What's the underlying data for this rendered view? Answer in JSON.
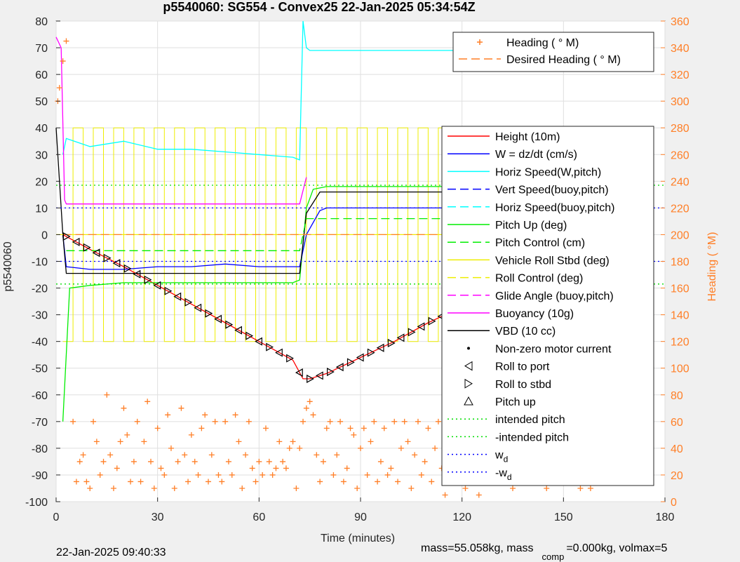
{
  "chart_data": {
    "type": "line",
    "title": "p5540060: SG554 - Convex25 22-Jan-2025 05:34:54Z",
    "xlabel": "Time (minutes)",
    "ylabel_left": "p5540060",
    "ylabel_right": "Heading (  °M)",
    "xlim": [
      0,
      180
    ],
    "ylim_left": [
      -100,
      80
    ],
    "ylim_right": [
      0,
      360
    ],
    "xticks": [
      0,
      30,
      60,
      90,
      120,
      150,
      180
    ],
    "yticks_left": [
      -100,
      -90,
      -80,
      -70,
      -60,
      -50,
      -40,
      -30,
      -20,
      -10,
      0,
      10,
      20,
      30,
      40,
      50,
      60,
      70,
      80
    ],
    "yticks_right": [
      0,
      20,
      40,
      60,
      80,
      100,
      120,
      140,
      160,
      180,
      200,
      220,
      240,
      260,
      280,
      300,
      320,
      340,
      360
    ],
    "grid": true,
    "footer_left": "22-Jan-2025 09:40:33",
    "footer_right": {
      "t1": "mass=55.058kg, mass",
      "sub": "comp",
      "t2": "=0.000kg, volmax=5"
    },
    "legend_top": {
      "placement": "top-right",
      "entries": [
        {
          "label": "Heading (   ° M)",
          "color": "#ff7f27",
          "style": "plus"
        },
        {
          "label": "Desired Heading (    ° M)",
          "color": "#ff7f27",
          "style": "dash"
        }
      ]
    },
    "legend_main": {
      "placement": "right",
      "entries": [
        {
          "label": "Height (10m)",
          "color": "#ff0000",
          "style": "solid"
        },
        {
          "label": "W = dz/dt (cm/s)",
          "color": "#0000ff",
          "style": "solid"
        },
        {
          "label": "Horiz Speed(W,pitch)",
          "color": "#00ffff",
          "style": "solid"
        },
        {
          "label": "Vert Speed(buoy,pitch)",
          "color": "#0000ff",
          "style": "dash"
        },
        {
          "label": "Horiz Speed(buoy,pitch)",
          "color": "#00ffff",
          "style": "dash"
        },
        {
          "label": "Pitch Up (deg)",
          "color": "#00ee00",
          "style": "solid"
        },
        {
          "label": "Pitch Control (cm)",
          "color": "#00ee00",
          "style": "dash"
        },
        {
          "label": "Vehicle Roll Stbd (deg)",
          "color": "#eeee00",
          "style": "solid"
        },
        {
          "label": "Roll Control (deg)",
          "color": "#eeee00",
          "style": "dash"
        },
        {
          "label": "Glide Angle (buoy,pitch)",
          "color": "#ff00ff",
          "style": "dash"
        },
        {
          "label": "Buoyancy (10g)",
          "color": "#ff00ff",
          "style": "solid"
        },
        {
          "label": "VBD (10 cc)",
          "color": "#000000",
          "style": "solid"
        },
        {
          "label": "Non-zero motor current",
          "color": "#000000",
          "style": "dot"
        },
        {
          "label": "Roll to port",
          "color": "#000000",
          "style": "tri-left"
        },
        {
          "label": "Roll to stbd",
          "color": "#000000",
          "style": "tri-right"
        },
        {
          "label": "Pitch up",
          "color": "#000000",
          "style": "tri-up"
        },
        {
          "label": "intended pitch",
          "color": "#00dd00",
          "style": "dot-line"
        },
        {
          "label": "-intended pitch",
          "color": "#00dd00",
          "style": "dot-line"
        },
        {
          "label": "w",
          "sub": "d",
          "color": "#0000ff",
          "style": "dot-line"
        },
        {
          "label": "-w",
          "sub": "d",
          "color": "#0000ff",
          "style": "dot-line"
        }
      ]
    },
    "series": [
      {
        "name": "Height (10m)",
        "color": "#ff0000",
        "x": [
          2,
          10,
          20,
          30,
          40,
          50,
          60,
          70,
          73,
          75,
          80,
          90,
          100,
          110,
          120,
          130,
          140,
          150,
          160,
          162
        ],
        "y": [
          0,
          -5.5,
          -12,
          -19,
          -26,
          -33,
          -40,
          -47,
          -54,
          -54,
          -52,
          -46,
          -40,
          -33,
          -27,
          -20,
          -14,
          -8,
          -2,
          -1
        ]
      },
      {
        "name": "Pitch Up (deg)",
        "color": "#00ee00",
        "x": [
          2,
          4,
          10,
          20,
          30,
          40,
          50,
          60,
          70,
          72,
          74,
          76,
          80,
          90,
          100,
          110,
          120,
          130,
          140,
          150,
          160,
          162
        ],
        "y": [
          -70,
          -20,
          -19,
          -18,
          -18,
          -18,
          -18,
          -18,
          -18,
          -17,
          10,
          17,
          18,
          18,
          18,
          18,
          18,
          18,
          18,
          18,
          18,
          18
        ]
      },
      {
        "name": "W = dz/dt (cm/s)",
        "color": "#0000ff",
        "x": [
          2,
          3,
          10,
          20,
          30,
          40,
          50,
          60,
          70,
          72,
          74,
          78,
          80,
          90,
          100,
          110,
          120,
          130,
          140,
          150,
          160,
          162
        ],
        "y": [
          0,
          -12,
          -13,
          -13,
          -12,
          -12,
          -11,
          -12,
          -12,
          -12,
          0,
          9,
          10,
          10,
          10,
          10,
          10,
          10,
          10,
          10,
          10,
          10
        ]
      },
      {
        "name": "Horiz Speed(W,pitch)",
        "color": "#00ffff",
        "x": [
          2,
          3,
          10,
          20,
          30,
          40,
          50,
          60,
          70,
          72,
          73,
          74,
          75,
          80,
          100,
          120,
          140,
          160,
          162
        ],
        "y": [
          30,
          36,
          33,
          35,
          32,
          32,
          31,
          30,
          29,
          28,
          80,
          70,
          69,
          69,
          69,
          69,
          69,
          69,
          69
        ]
      },
      {
        "name": "VBD (10 cc)",
        "color": "#000000",
        "x": [
          0,
          2,
          3,
          72,
          74,
          78,
          80,
          100,
          120,
          140,
          160,
          162
        ],
        "y": [
          40,
          0,
          -14.5,
          -14.5,
          8,
          16,
          16,
          16,
          16,
          16,
          16,
          16
        ]
      },
      {
        "name": "Buoyancy (10g)",
        "color": "#ff00ff",
        "x": [
          0,
          1.5,
          2.5,
          3,
          72,
          74
        ],
        "y": [
          74,
          70,
          13,
          11.5,
          11.5,
          21.5
        ]
      },
      {
        "name": "Pitch Control (cm)",
        "color": "#00ee00",
        "style": "dash",
        "x": [
          3,
          72,
          74,
          162
        ],
        "y": [
          -6,
          -6,
          6,
          6
        ]
      },
      {
        "name": "Vehicle Roll Stbd (deg)",
        "color": "#eeee00",
        "x": [
          0,
          10,
          20,
          40,
          60,
          80,
          100,
          120,
          140,
          160
        ],
        "y": [
          0,
          0,
          0,
          0,
          0,
          0,
          0,
          0,
          0,
          0
        ]
      },
      {
        "name": "intended pitch",
        "color": "#00dd00",
        "style": "dot-line",
        "x": [
          0,
          180
        ],
        "y": [
          18.5,
          18.5
        ]
      },
      {
        "name": "-intended pitch",
        "color": "#00dd00",
        "style": "dot-line",
        "x": [
          0,
          180
        ],
        "y": [
          -18.5,
          -18.5
        ]
      },
      {
        "name": "w_d",
        "color": "#0000ff",
        "style": "dot-line",
        "x": [
          0,
          180
        ],
        "y": [
          10,
          10
        ]
      },
      {
        "name": "-w_d",
        "color": "#0000ff",
        "style": "dot-line",
        "x": [
          0,
          180
        ],
        "y": [
          -10,
          -10
        ]
      },
      {
        "name": "Desired Heading",
        "color": "#ff7f27",
        "style": "dash",
        "axis": "right",
        "x": [
          2,
          162
        ],
        "y": [
          200,
          200
        ]
      },
      {
        "name": "Heading",
        "color": "#ff7f27",
        "style": "plus",
        "axis": "right",
        "x": [
          0.5,
          1,
          2,
          3,
          5,
          6,
          7,
          8,
          9,
          10,
          11,
          12,
          13,
          14,
          15,
          16,
          17,
          18,
          19,
          20,
          21,
          22,
          23,
          24,
          25,
          26,
          27,
          28,
          29,
          30,
          31,
          32,
          33,
          34,
          35,
          36,
          37,
          38,
          39,
          40,
          41,
          42,
          43,
          44,
          45,
          46,
          47,
          48,
          49,
          50,
          51,
          52,
          53,
          54,
          55,
          56,
          57,
          58,
          59,
          60,
          61,
          62,
          63,
          64,
          65,
          66,
          67,
          68,
          69,
          70,
          71,
          72,
          73,
          74,
          75,
          76,
          77,
          78,
          79,
          80,
          81,
          82,
          83,
          84,
          85,
          86,
          87,
          88,
          89,
          90,
          91,
          92,
          93,
          94,
          95,
          96,
          97,
          98,
          99,
          100,
          101,
          102,
          103,
          104,
          105,
          106,
          107,
          108,
          109,
          110,
          111,
          112,
          113,
          114,
          115,
          116,
          117,
          118,
          119,
          120,
          121,
          122,
          123,
          124,
          125,
          126,
          127,
          128,
          129,
          130,
          131,
          132,
          133,
          134,
          135,
          136,
          137,
          138,
          139,
          140,
          141,
          142,
          143,
          144,
          145,
          146,
          147,
          148,
          149,
          150,
          151,
          152,
          153,
          154,
          155,
          156,
          157,
          158,
          159,
          160,
          161,
          162
        ],
        "y": [
          300,
          310,
          330,
          345,
          60,
          15,
          30,
          35,
          15,
          10,
          60,
          45,
          20,
          30,
          80,
          35,
          10,
          25,
          45,
          70,
          50,
          15,
          30,
          60,
          15,
          45,
          75,
          30,
          10,
          55,
          25,
          20,
          65,
          40,
          10,
          30,
          70,
          35,
          15,
          50,
          30,
          20,
          55,
          65,
          15,
          35,
          60,
          20,
          15,
          60,
          30,
          20,
          65,
          45,
          10,
          35,
          60,
          25,
          15,
          30,
          20,
          55,
          30,
          20,
          25,
          45,
          30,
          25,
          40,
          45,
          10,
          40,
          60,
          70,
          75,
          65,
          35,
          15,
          30,
          55,
          60,
          20,
          35,
          60,
          15,
          25,
          55,
          50,
          10,
          40,
          55,
          20,
          45,
          60,
          15,
          30,
          55,
          20,
          25,
          60,
          15,
          40,
          60,
          45,
          10,
          35,
          60,
          20,
          30,
          55,
          15,
          40,
          60,
          25,
          5,
          50,
          55,
          20,
          35,
          60,
          10,
          45,
          60,
          20,
          5,
          55,
          40,
          15,
          40,
          60,
          25,
          15,
          55,
          45,
          10,
          45,
          60,
          20,
          20,
          55,
          25,
          15,
          50,
          60,
          10,
          35,
          55,
          20,
          30,
          55,
          15,
          45,
          60,
          20,
          10,
          50,
          40,
          10,
          40,
          55,
          30,
          20
        ]
      }
    ]
  }
}
